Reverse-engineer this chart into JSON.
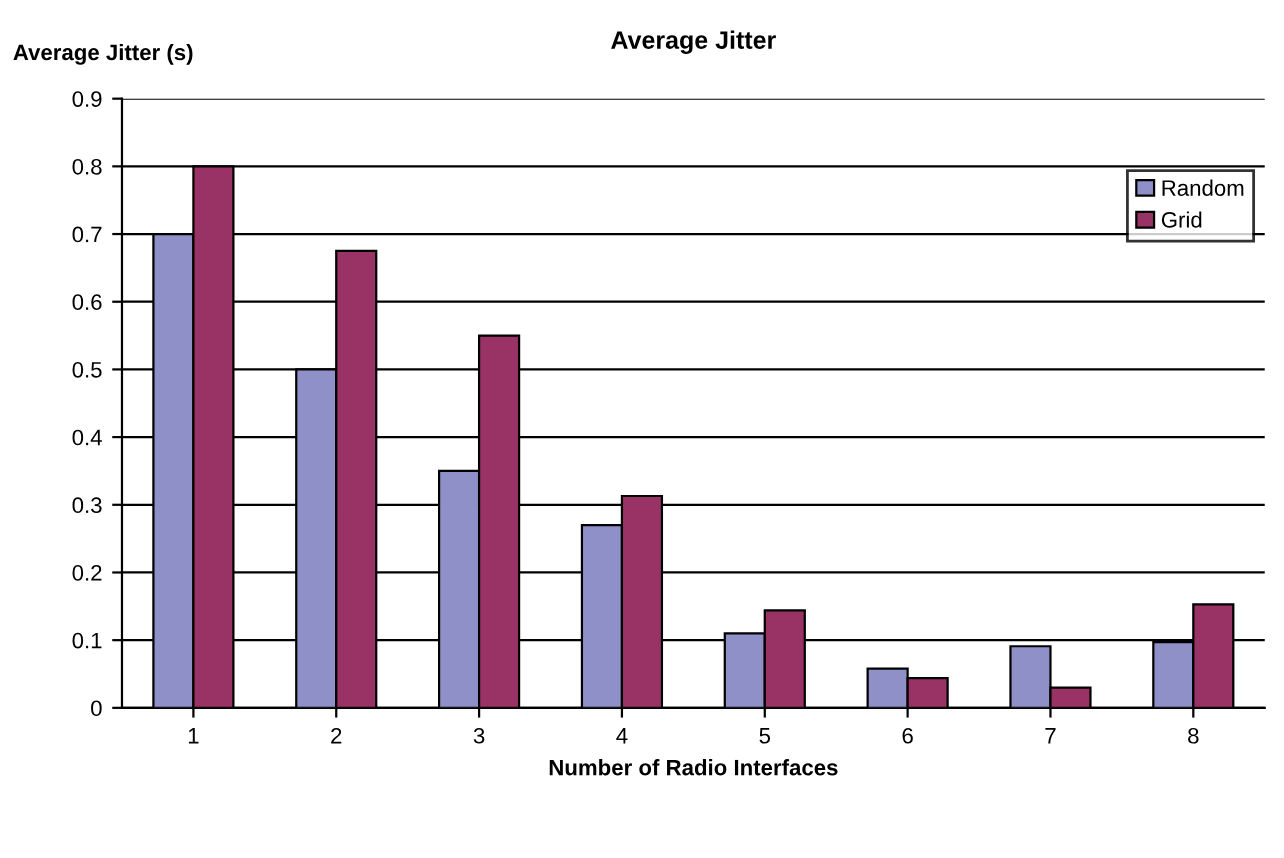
{
  "chart_data": {
    "type": "bar",
    "title": "Average Jitter",
    "xlabel": "Number of Radio Interfaces",
    "ylabel": "Average Jitter (s)",
    "categories": [
      "1",
      "2",
      "3",
      "4",
      "5",
      "6",
      "7",
      "8"
    ],
    "series": [
      {
        "name": "Random",
        "color": "#9090c8",
        "values": [
          0.7,
          0.5,
          0.35,
          0.27,
          0.11,
          0.058,
          0.091,
          0.097
        ]
      },
      {
        "name": "Grid",
        "color": "#993366",
        "values": [
          0.8,
          0.675,
          0.55,
          0.313,
          0.144,
          0.044,
          0.03,
          0.153
        ]
      }
    ],
    "ylim": [
      0,
      0.9
    ],
    "yticks": [
      0,
      0.1,
      0.2,
      0.3,
      0.4,
      0.5,
      0.6,
      0.7,
      0.8,
      0.9
    ],
    "grid": "y",
    "legend": "top right"
  }
}
